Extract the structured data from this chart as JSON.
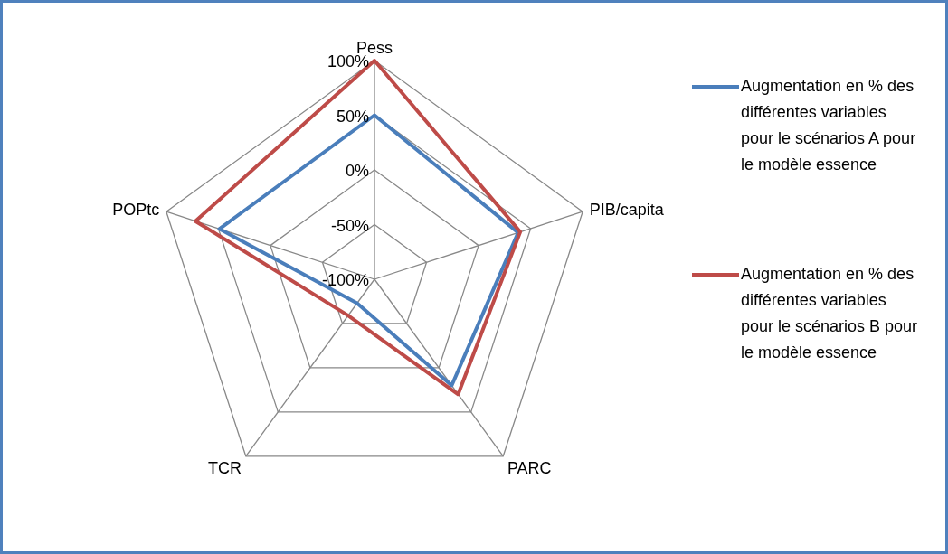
{
  "chart_data": {
    "type": "radar",
    "categories": [
      "Pess",
      "PIB/capita",
      "PARC",
      "TCR",
      "POPtc"
    ],
    "series": [
      {
        "name": "Augmentation en % des différentes variables pour le scénarios A pour le modèle essence",
        "color": "#4a7ebb",
        "values": [
          50,
          38,
          20,
          -73,
          49
        ]
      },
      {
        "name": "Augmentation en % des différentes variables pour le scénarios B pour le modèle essence",
        "color": "#be4b48",
        "values": [
          100,
          40,
          30,
          -59,
          72
        ]
      }
    ],
    "ylim": [
      -100,
      100
    ],
    "yticks": [
      {
        "value": -100,
        "label": "-100%"
      },
      {
        "value": -50,
        "label": "-50%"
      },
      {
        "value": 0,
        "label": "0%"
      },
      {
        "value": 50,
        "label": "50%"
      },
      {
        "value": 100,
        "label": "100%"
      }
    ],
    "grid": true,
    "legend": "right",
    "marker": "none",
    "line_style": "solid"
  }
}
